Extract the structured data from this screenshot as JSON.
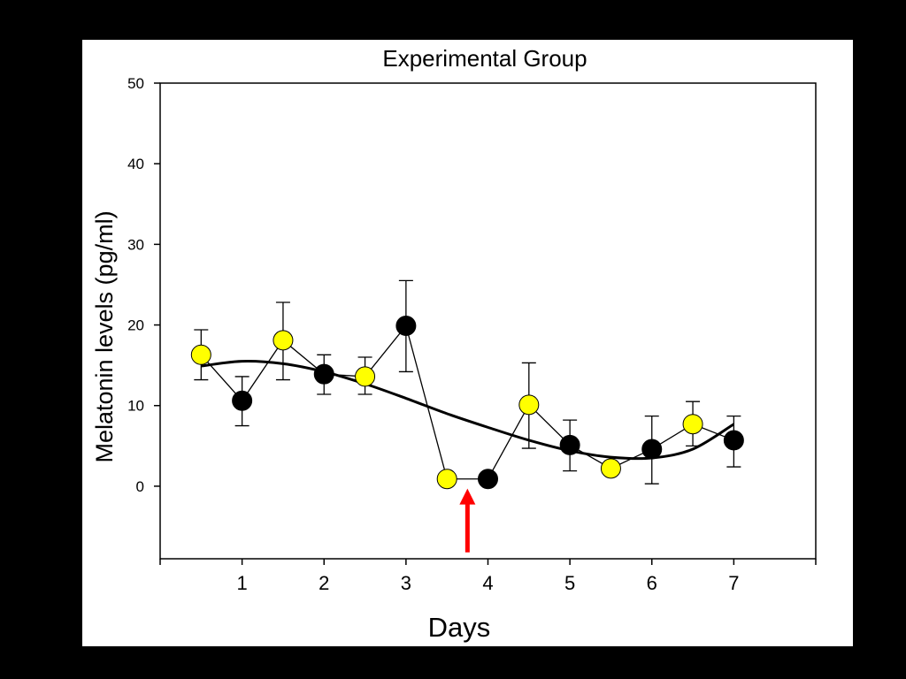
{
  "chart_data": {
    "type": "scatter",
    "title": "Experimental Group",
    "xlabel": "Days",
    "ylabel": "Melatonin levels (pg/ml)",
    "xlim": [
      0,
      8
    ],
    "ylim": [
      -9,
      50
    ],
    "x_ticks": [
      "1",
      "2",
      "3",
      "4",
      "5",
      "6",
      "7"
    ],
    "x_tick_values": [
      1,
      2,
      3,
      4,
      5,
      6,
      7
    ],
    "y_ticks": [
      "0",
      "10",
      "20",
      "30",
      "40",
      "50"
    ],
    "y_tick_values": [
      0,
      10,
      20,
      30,
      40,
      50
    ],
    "grid": false,
    "colors": {
      "light_points": "#ffff00",
      "dark_points": "#000000",
      "arrow": "#ff0000",
      "line": "#000000"
    },
    "points": [
      {
        "x": 0.5,
        "y": 16.3,
        "err_low": 13.2,
        "err_high": 19.4,
        "phase": "light"
      },
      {
        "x": 1.0,
        "y": 10.6,
        "err_low": 7.5,
        "err_high": 13.6,
        "phase": "dark"
      },
      {
        "x": 1.5,
        "y": 18.1,
        "err_low": 13.2,
        "err_high": 22.8,
        "phase": "light"
      },
      {
        "x": 2.0,
        "y": 13.9,
        "err_low": 11.4,
        "err_high": 16.3,
        "phase": "dark"
      },
      {
        "x": 2.5,
        "y": 13.6,
        "err_low": 11.4,
        "err_high": 16.0,
        "phase": "light"
      },
      {
        "x": 3.0,
        "y": 19.9,
        "err_low": 14.2,
        "err_high": 25.5,
        "phase": "dark"
      },
      {
        "x": 3.5,
        "y": 0.9,
        "err_low": null,
        "err_high": null,
        "phase": "light"
      },
      {
        "x": 4.0,
        "y": 0.9,
        "err_low": null,
        "err_high": null,
        "phase": "dark"
      },
      {
        "x": 4.5,
        "y": 10.1,
        "err_low": 4.7,
        "err_high": 15.3,
        "phase": "light"
      },
      {
        "x": 5.0,
        "y": 5.1,
        "err_low": 1.9,
        "err_high": 8.2,
        "phase": "dark"
      },
      {
        "x": 5.5,
        "y": 2.2,
        "err_low": null,
        "err_high": null,
        "phase": "light"
      },
      {
        "x": 6.0,
        "y": 4.6,
        "err_low": 0.3,
        "err_high": 8.7,
        "phase": "dark"
      },
      {
        "x": 6.5,
        "y": 7.7,
        "err_low": 5.0,
        "err_high": 10.5,
        "phase": "light"
      },
      {
        "x": 7.0,
        "y": 5.7,
        "err_low": 2.4,
        "err_high": 8.7,
        "phase": "dark"
      }
    ],
    "trend_curve": {
      "x": [
        0.5,
        1.0,
        1.5,
        2.0,
        2.5,
        3.0,
        3.5,
        4.0,
        4.5,
        5.0,
        5.5,
        6.0,
        6.5,
        7.0
      ],
      "y": [
        14.9,
        15.5,
        15.2,
        14.2,
        12.7,
        10.9,
        9.0,
        7.3,
        5.7,
        4.4,
        3.6,
        3.5,
        4.6,
        7.7
      ]
    },
    "annotation": {
      "type": "arrow",
      "x": 3.75,
      "y_from": -8.2,
      "y_to": -0.3
    }
  }
}
